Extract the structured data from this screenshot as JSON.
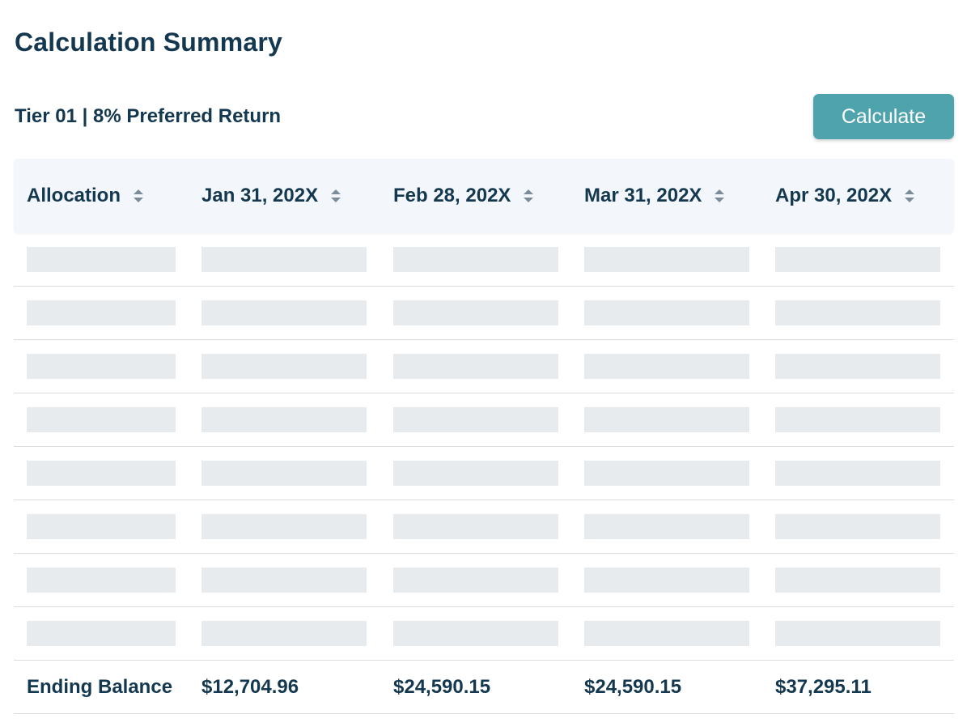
{
  "page": {
    "title": "Calculation Summary",
    "subtitle": "Tier 01 | 8% Preferred Return"
  },
  "toolbar": {
    "calculate_label": "Calculate"
  },
  "table": {
    "columns": [
      {
        "label": "Allocation",
        "sort_icon": "sort-icon"
      },
      {
        "label": "Jan 31, 202X",
        "sort_icon": "sort-icon"
      },
      {
        "label": "Feb 28, 202X",
        "sort_icon": "sort-icon"
      },
      {
        "label": "Mar 31, 202X",
        "sort_icon": "sort-icon"
      },
      {
        "label": "Apr 30, 202X",
        "sort_icon": "sort-icon"
      }
    ],
    "loading_rows": 8,
    "footer": {
      "label": "Ending Balance",
      "values": [
        "$12,704.96",
        "$24,590.15",
        "$24,590.15",
        "$37,295.11"
      ]
    }
  },
  "colors": {
    "text": "#14384f",
    "accent": "#4fa3ac",
    "header_bg": "#f3f7fc",
    "skeleton": "#e8ebee",
    "divider": "#d9dde1"
  }
}
